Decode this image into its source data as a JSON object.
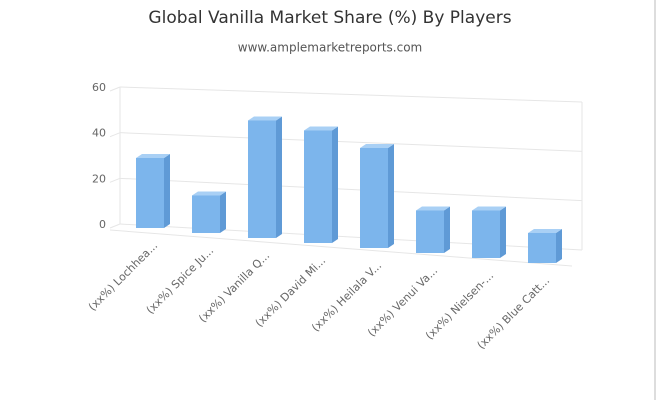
{
  "chart_data": {
    "type": "bar3d",
    "title": "Global Vanilla Market Share (%) By Players",
    "subtitle": "www.amplemarketreports.com",
    "categories": [
      "(xx%) Lochhea...",
      "(xx%) Spice Ju...",
      "(xx%) Vanilla Q...",
      "(xx%) David Mi...",
      "(xx%) Heilala V...",
      "(xx%) Venui Va...",
      "(xx%) Nielsen-...",
      "(xx%) Blue Catt..."
    ],
    "values": [
      28,
      15,
      47,
      45,
      40,
      17,
      19,
      12
    ],
    "color": "#7cb5ec",
    "ylim": [
      0,
      60
    ],
    "yticks": [
      0,
      20,
      40,
      60
    ],
    "grid": true
  }
}
